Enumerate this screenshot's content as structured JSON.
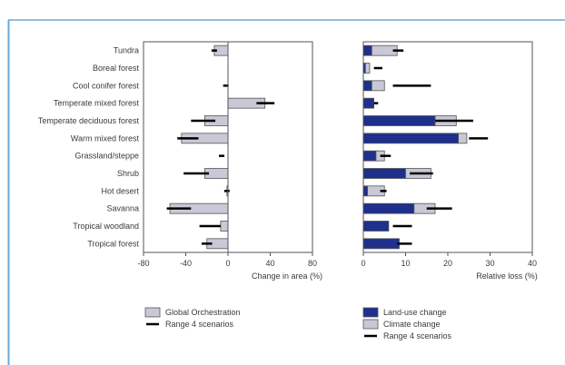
{
  "chart_data": [
    {
      "type": "bar",
      "orientation": "horizontal",
      "categories": [
        "Tundra",
        "Boreal forest",
        "Cool conifer forest",
        "Temperate mixed forest",
        "Temperate deciduous forest",
        "Warm mixed forest",
        "Grassland/steppe",
        "Shrub",
        "Hot desert",
        "Savanna",
        "Tropical woodland",
        "Tropical forest"
      ],
      "xlabel": "Change in area (%)",
      "xlim": [
        -80,
        80
      ],
      "xticks": [
        -80,
        -40,
        0,
        40,
        80
      ],
      "grid": false,
      "series": [
        {
          "name": "Global Orchestration",
          "color": "#c8c8d6",
          "values": [
            -13,
            0,
            0,
            35,
            -22,
            -44,
            0,
            -22,
            -1,
            -55,
            -7,
            -20
          ]
        }
      ],
      "ranges": [
        {
          "name": "Range 4 scenarios",
          "color": "#000000",
          "values": [
            [
              -13,
              -13
            ],
            [
              0,
              0
            ],
            [
              -2,
              -2
            ],
            [
              27,
              44
            ],
            [
              -35,
              -12
            ],
            [
              -48,
              -28
            ],
            [
              -6,
              -6
            ],
            [
              -42,
              -18
            ],
            [
              -1,
              -1
            ],
            [
              -58,
              -35
            ],
            [
              -27,
              -7
            ],
            [
              -25,
              -15
            ]
          ]
        }
      ],
      "legend": {
        "placement": "bottom-left",
        "entries": [
          "Global Orchestration",
          "Range 4 scenarios"
        ]
      }
    },
    {
      "type": "bar",
      "orientation": "horizontal",
      "stacked": true,
      "categories": [
        "Tundra",
        "Boreal forest",
        "Cool conifer forest",
        "Temperate mixed forest",
        "Temperate deciduous forest",
        "Warm mixed forest",
        "Grassland/steppe",
        "Shrub",
        "Hot desert",
        "Savanna",
        "Tropical woodland",
        "Tropical forest"
      ],
      "xlabel": "Relative loss (%)",
      "xlim": [
        0,
        40
      ],
      "xticks": [
        0,
        10,
        20,
        30,
        40
      ],
      "grid": false,
      "series": [
        {
          "name": "Land-use change",
          "color": "#1f2f8c",
          "values": [
            2,
            0.5,
            2,
            2.5,
            17,
            22.5,
            3,
            10,
            1,
            12,
            6,
            8.5
          ]
        },
        {
          "name": "Climate change",
          "color": "#c8c8d6",
          "values": [
            6,
            1,
            3,
            0,
            5,
            2,
            2,
            6,
            4,
            5,
            0,
            0
          ]
        }
      ],
      "ranges": [
        {
          "name": "Range 4 scenarios",
          "color": "#000000",
          "values": [
            [
              7,
              9.5
            ],
            [
              2.5,
              4.5
            ],
            [
              7,
              16
            ],
            [
              2.5,
              3.5
            ],
            [
              17,
              26
            ],
            [
              25,
              29.5
            ],
            [
              4,
              6.5
            ],
            [
              11,
              16.5
            ],
            [
              4,
              5.5
            ],
            [
              15,
              21
            ],
            [
              7,
              11.5
            ],
            [
              8,
              11.5
            ]
          ]
        }
      ],
      "legend": {
        "placement": "bottom-center",
        "entries": [
          "Land-use change",
          "Climate change",
          "Range 4 scenarios"
        ]
      }
    }
  ]
}
